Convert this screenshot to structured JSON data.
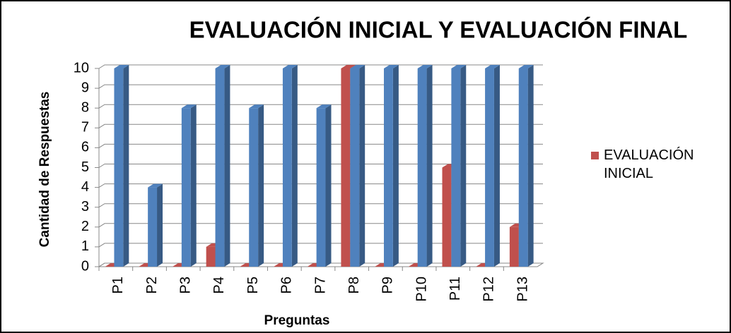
{
  "chart_data": {
    "type": "bar3d",
    "title": "EVALUACIÓN INICIAL Y EVALUACIÓN FINAL",
    "x_label": "Preguntas",
    "y_label": "Cantidad de Respuestas",
    "categories": [
      "P1",
      "P2",
      "P3",
      "P4",
      "P5",
      "P6",
      "P7",
      "P8",
      "P9",
      "P10",
      "P11",
      "P12",
      "P13"
    ],
    "series": [
      {
        "name": "EVALUACIÓN INICIAL",
        "color": "#c0504d",
        "values": [
          0,
          0,
          0,
          1,
          0,
          0,
          0,
          10,
          0,
          0,
          5,
          0,
          2
        ]
      },
      {
        "color": "#4f81bd",
        "values": [
          10,
          4,
          8,
          10,
          8,
          10,
          8,
          10,
          10,
          10,
          10,
          10,
          10
        ]
      }
    ],
    "ylim": [
      0,
      10
    ],
    "yticks": [
      0,
      1,
      2,
      3,
      4,
      5,
      6,
      7,
      8,
      9,
      10
    ],
    "grid": true,
    "legend": "right"
  }
}
